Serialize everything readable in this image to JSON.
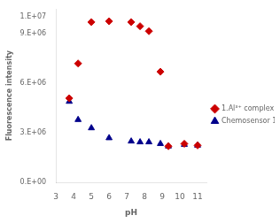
{
  "chart_data": {
    "type": "scatter",
    "xlabel": "pH",
    "ylabel": "Fluorescence intensity",
    "series": [
      {
        "name": "1.Al³⁺ complex",
        "color": "#cc0000",
        "marker": "diamond",
        "x": [
          3.75,
          4.25,
          5.0,
          6.0,
          7.25,
          7.75,
          8.25,
          8.9,
          9.35,
          10.25,
          11.0
        ],
        "values": [
          5100000,
          7200000,
          9700000,
          9750000,
          9700000,
          9450000,
          9150000,
          6700000,
          2200000,
          2350000,
          2250000
        ]
      },
      {
        "name": "Chemosensor 1",
        "color": "#00008b",
        "marker": "triangle",
        "x": [
          3.75,
          4.25,
          5.0,
          6.0,
          7.25,
          7.75,
          8.25,
          8.9,
          9.35,
          10.25,
          11.0
        ],
        "values": [
          4900000,
          3800000,
          3300000,
          2700000,
          2500000,
          2450000,
          2450000,
          2350000,
          2200000,
          2300000,
          2250000
        ]
      }
    ],
    "xlim": [
      3,
      11.5
    ],
    "xticks": [
      3,
      4,
      5,
      6,
      7,
      8,
      9,
      10,
      11
    ],
    "ylim": [
      0,
      10500000
    ],
    "yticks": [
      {
        "value": 0,
        "label": "0.E+00"
      },
      {
        "value": 3000000,
        "label": "3.E+06"
      },
      {
        "value": 6000000,
        "label": "6.E+06"
      },
      {
        "value": 9000000,
        "label": "9.E+06"
      },
      {
        "value": 10000000,
        "label": "1.E+07"
      }
    ],
    "grid": false,
    "legend": "right"
  }
}
